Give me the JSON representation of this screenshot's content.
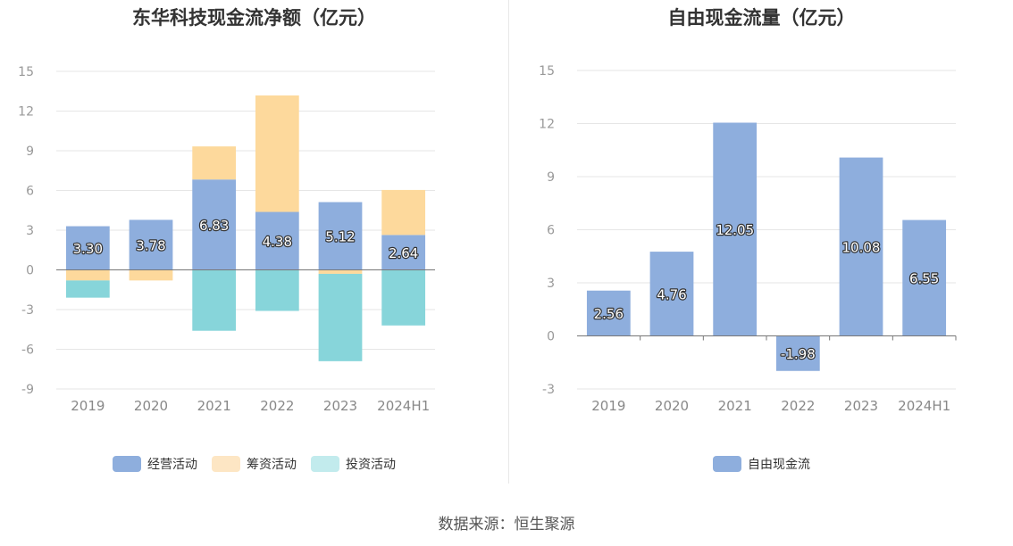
{
  "colors": {
    "operating": "#8eaedd",
    "financing": "#fdd99c",
    "investing": "#87d5da",
    "free_cash": "#8eaedd"
  },
  "source": "数据来源：恒生聚源",
  "chart_data": [
    {
      "type": "bar",
      "title": "东华科技现金流净额（亿元）",
      "stacked": true,
      "categories": [
        "2019",
        "2020",
        "2021",
        "2022",
        "2023",
        "2024H1"
      ],
      "ylim": [
        -9,
        15
      ],
      "yticks": [
        "15",
        "12",
        "9",
        "6",
        "3",
        "0",
        "-3",
        "-6",
        "-9"
      ],
      "series": [
        {
          "name": "经营活动",
          "values": [
            3.3,
            3.78,
            6.83,
            4.38,
            5.12,
            2.64
          ],
          "labels": [
            "3.30",
            "3.78",
            "6.83",
            "4.38",
            "5.12",
            "2.64"
          ]
        },
        {
          "name": "筹资活动",
          "values": [
            -0.8,
            -0.8,
            2.5,
            8.8,
            -0.3,
            3.4
          ]
        },
        {
          "name": "投资活动",
          "values": [
            -1.3,
            0,
            -4.6,
            -3.1,
            -6.6,
            -4.2
          ]
        }
      ],
      "legend": "bottom",
      "grid": true
    },
    {
      "type": "bar",
      "title": "自由现金流量（亿元）",
      "categories": [
        "2019",
        "2020",
        "2021",
        "2022",
        "2023",
        "2024H1"
      ],
      "ylim": [
        -3,
        15
      ],
      "yticks": [
        "15",
        "12",
        "9",
        "6",
        "3",
        "0",
        "-3"
      ],
      "series": [
        {
          "name": "自由现金流",
          "values": [
            2.56,
            4.76,
            12.05,
            -1.98,
            10.08,
            6.55
          ],
          "labels": [
            "2.56",
            "4.76",
            "12.05",
            "-1.98",
            "10.08",
            "6.55"
          ]
        }
      ],
      "legend": "bottom",
      "grid": true
    }
  ]
}
